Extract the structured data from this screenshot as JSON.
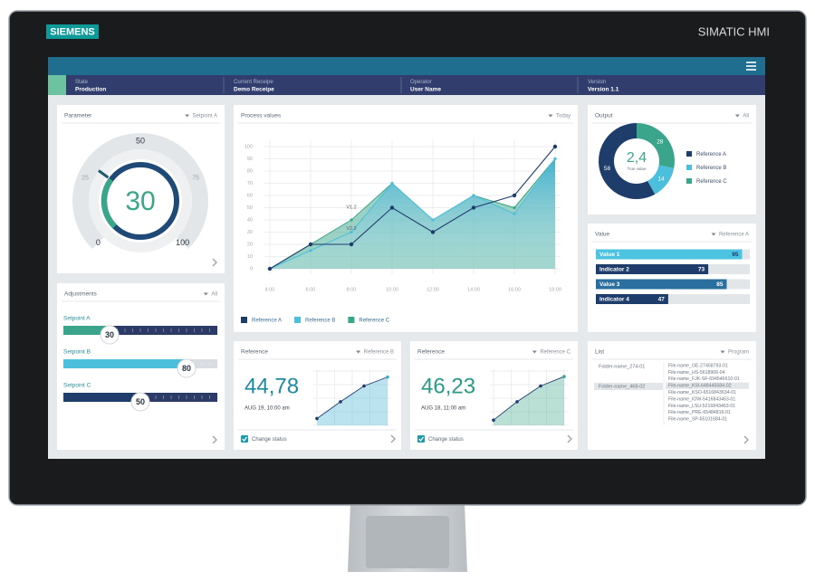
{
  "brand": "SIEMENS",
  "product": "SIMATIC HMI",
  "status_bar": [
    {
      "label": "State",
      "value": "Production"
    },
    {
      "label": "Current Receipe",
      "value": "Demo Receipe"
    },
    {
      "label": "Operator",
      "value": "User Name"
    },
    {
      "label": "Version",
      "value": "Version 1.1"
    }
  ],
  "parameter": {
    "title": "Parameter",
    "selector": "Setpoint A",
    "gauge": {
      "type": "gauge",
      "value": 30,
      "lim": [
        0,
        100
      ],
      "ticks": [
        0,
        25,
        50,
        75,
        100
      ],
      "color": "#3aa58a",
      "track_color": "#1f4a78"
    }
  },
  "adjustments": {
    "title": "Adjustments",
    "selector": "All",
    "lim": [
      0,
      100
    ],
    "sliders": [
      {
        "label": "Setpoint A",
        "value": 30,
        "color": "#3aa58a",
        "track_color": "#2b3a66"
      },
      {
        "label": "Setpoint B",
        "value": 80,
        "color": "#4cbfdc",
        "track_color": "#d9dde1"
      },
      {
        "label": "Setpoint C",
        "value": 50,
        "color": "#1f3d6b",
        "track_color": "#2b3a66"
      }
    ]
  },
  "process_values": {
    "title": "Process values",
    "selector": "Today",
    "chart": {
      "type": "line",
      "categories": [
        "4:00",
        "6:00",
        "8:00",
        "10:00",
        "12:00",
        "14:00",
        "16:00",
        "18:00"
      ],
      "ylim": [
        0,
        100
      ],
      "yticks": [
        0,
        10,
        20,
        30,
        40,
        50,
        60,
        70,
        80,
        90,
        100
      ],
      "grid": true,
      "annotations": [
        "V1.2",
        "V2.2"
      ],
      "series": [
        {
          "name": "Reference A",
          "color": "#1f3d6b",
          "style": "line",
          "values": [
            0,
            20,
            20,
            50,
            30,
            50,
            60,
            100
          ]
        },
        {
          "name": "Reference B",
          "color": "#4cbfdc",
          "style": "area",
          "values": [
            0,
            15,
            30,
            70,
            40,
            60,
            45,
            90
          ]
        },
        {
          "name": "Reference C",
          "color": "#3aa58a",
          "style": "area",
          "values": [
            0,
            20,
            40,
            70,
            40,
            60,
            50,
            90
          ]
        }
      ]
    }
  },
  "output": {
    "title": "Output",
    "selector": "All",
    "center_value": "2,4",
    "center_label": "True value",
    "chart": {
      "type": "donut",
      "series": [
        {
          "name": "Reference A",
          "color": "#1f3d6b",
          "value": 58
        },
        {
          "name": "Reference B",
          "color": "#4cbfdc",
          "value": 14
        },
        {
          "name": "Reference C",
          "color": "#3aa58a",
          "value": 28
        }
      ]
    }
  },
  "value": {
    "title": "Value",
    "selector": "Reference A",
    "chart": {
      "type": "hbar",
      "xlim": [
        0,
        100
      ],
      "bars": [
        {
          "label": "Value 1",
          "value": 95,
          "color": "#4cc3e0"
        },
        {
          "label": "Indicator 2",
          "value": 73,
          "color": "#1f3d6b"
        },
        {
          "label": "Value 3",
          "value": 85,
          "color": "#2a6f9e"
        },
        {
          "label": "Indicator 4",
          "value": 47,
          "color": "#1f3d6b"
        }
      ]
    }
  },
  "references": [
    {
      "title": "Reference",
      "selector": "Reference B",
      "reading": "44,78",
      "timestamp": "AUG 19, 10:00 am",
      "checkbox": "Change status",
      "trend": {
        "type": "line",
        "color": "#3aaed0",
        "ylim": [
          0,
          100
        ],
        "values": [
          13,
          45,
          75,
          92
        ]
      }
    },
    {
      "title": "Reference",
      "selector": "Reference C",
      "reading": "46,23",
      "timestamp": "AUG 18, 11:00 am",
      "checkbox": "Change status",
      "trend": {
        "type": "line",
        "color": "#3aa58a",
        "ylim": [
          0,
          100
        ],
        "values": [
          10,
          45,
          75,
          93
        ]
      }
    }
  ],
  "list": {
    "title": "List",
    "selector": "Program",
    "folders": [
      "Folder-name_274-01",
      "Folder-name_468-02"
    ],
    "files": [
      "File-name_GE-27458793-01",
      "File-name_HS-5618906-04",
      "File-name_FJK-SF-694546610-01",
      "File-name_KSI-648445584-02",
      "File-name_KSO-6516843634-01",
      "File-name_IOW-5416843463-01",
      "File-name_LSU-5216843463-01",
      "File-name_PRE-65484816-01",
      "File-name_SP-65101684-01"
    ]
  }
}
